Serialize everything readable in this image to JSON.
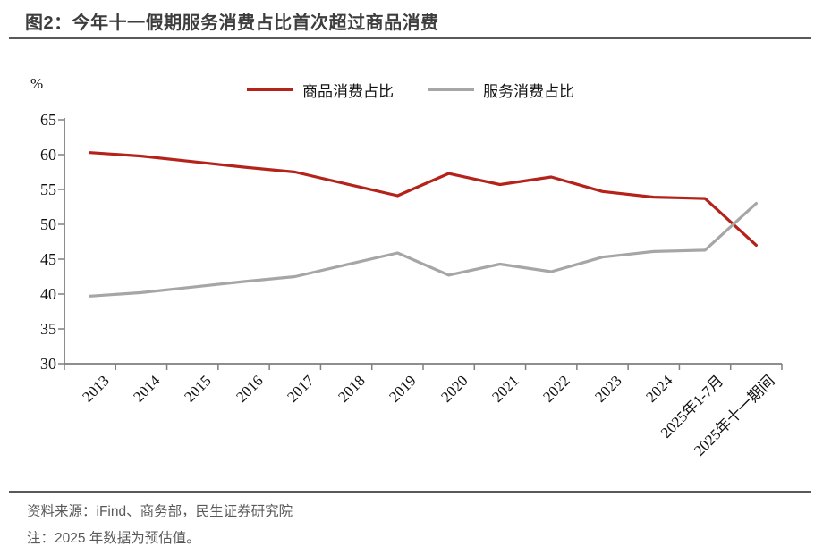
{
  "title": "图2：今年十一假期服务消费占比首次超过商品消费",
  "axis": {
    "unit_label": "%"
  },
  "footer": {
    "source": "资料来源：iFind、商务部，民生证券研究院",
    "note": "注：2025 年数据为预估值。"
  },
  "colors": {
    "goods_line": "#B42219",
    "services_line": "#A6A6A6",
    "axis": "#7f7f7f",
    "rule": "#595959",
    "title_text": "#3d3d3d",
    "footer_text": "#595959"
  },
  "chart_data": {
    "type": "line",
    "title": "今年十一假期服务消费占比首次超过商品消费",
    "xlabel": "",
    "ylabel": "%",
    "ylim": [
      30,
      65
    ],
    "ytick_step": 5,
    "grid": false,
    "legend_position": "top-center",
    "categories": [
      "2013",
      "2014",
      "2015",
      "2016",
      "2017",
      "2018",
      "2019",
      "2020",
      "2021",
      "2022",
      "2023",
      "2024",
      "2025年1-7月",
      "2025年十一期间"
    ],
    "series": [
      {
        "name": "商品消费占比",
        "color": "#B42219",
        "values": [
          60.3,
          59.8,
          59.0,
          58.2,
          57.5,
          55.8,
          54.1,
          57.3,
          55.7,
          56.8,
          54.7,
          53.9,
          53.7,
          47.0
        ]
      },
      {
        "name": "服务消费占比",
        "color": "#A6A6A6",
        "values": [
          39.7,
          40.2,
          41.0,
          41.8,
          42.5,
          44.2,
          45.9,
          42.7,
          44.3,
          43.2,
          45.3,
          46.1,
          46.3,
          53.0
        ]
      }
    ]
  }
}
